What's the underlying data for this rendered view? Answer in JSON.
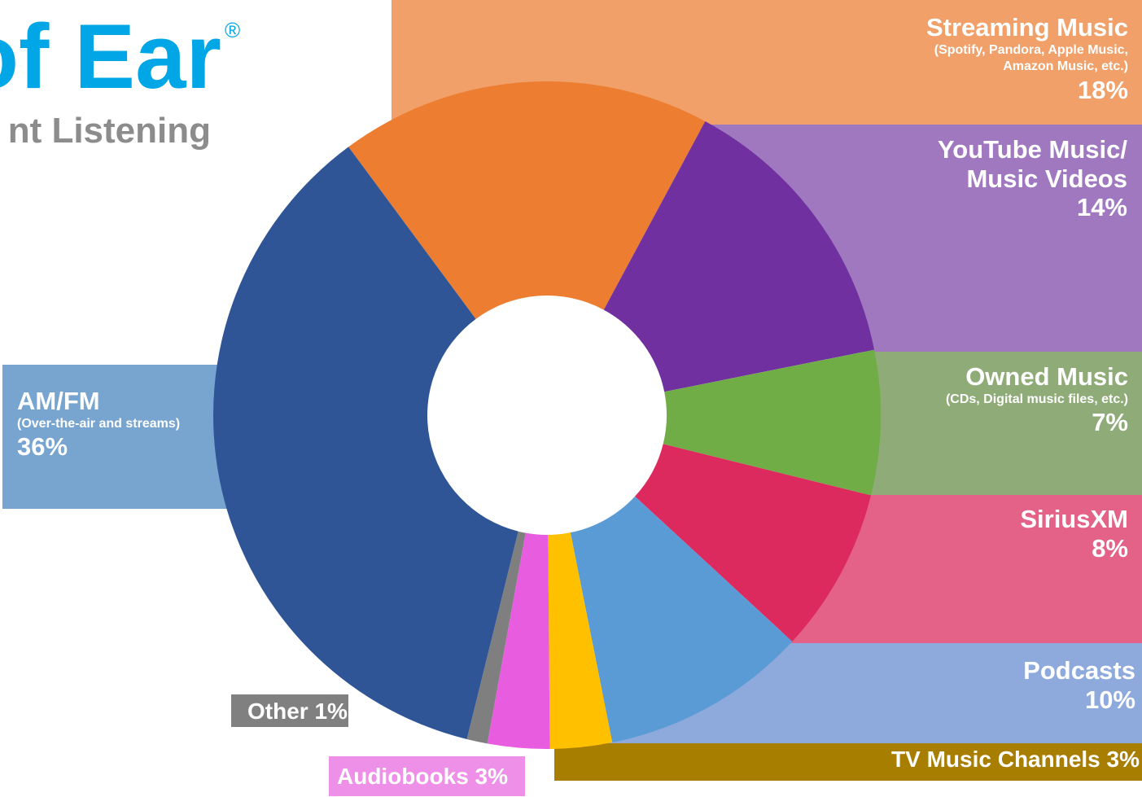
{
  "chart_data": {
    "type": "donut",
    "title": "of Ear",
    "title_mark": "®",
    "subtitle": "nt Listening",
    "categories": [
      "Streaming Music",
      "YouTube Music/ Music Videos",
      "Owned Music",
      "SiriusXM",
      "Podcasts",
      "TV Music Channels",
      "Audiobooks",
      "Other",
      "AM/FM"
    ],
    "notes": [
      "(Spotify, Pandora, Apple Music, Amazon Music, etc.)",
      null,
      "(CDs, Digital music files, etc.)",
      null,
      null,
      null,
      null,
      null,
      "(Over-the-air and streams)"
    ],
    "values": [
      18,
      14,
      7,
      8,
      10,
      3,
      3,
      1,
      36
    ],
    "value_labels": [
      "18%",
      "14%",
      "7%",
      "8%",
      "10%",
      "3%",
      "3%",
      "1%",
      "36%"
    ],
    "colors": [
      "#ed7d31",
      "#7030a0",
      "#70ad47",
      "#dc2a5e",
      "#5b9bd5",
      "#ffc000",
      "#e85de0",
      "#7f7f7f",
      "#2f5597"
    ]
  }
}
